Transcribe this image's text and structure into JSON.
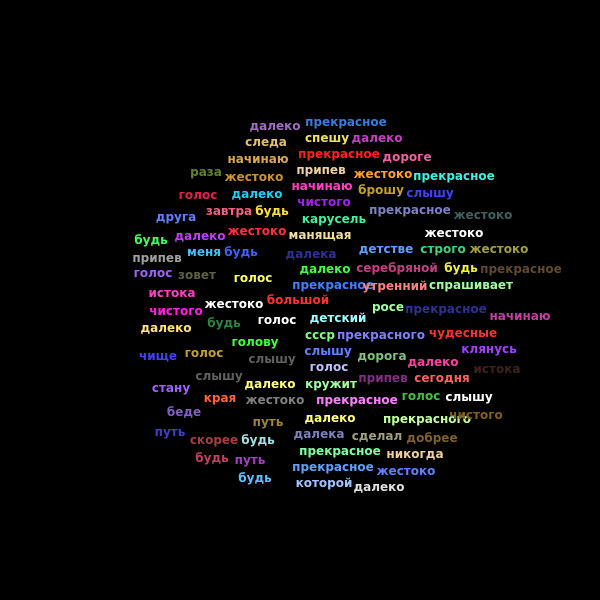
{
  "words": [
    {
      "text": "далеко",
      "color": "#a06cc0"
    },
    {
      "text": "прекрасное",
      "color": "#3a7ad8"
    },
    {
      "text": "следа",
      "color": "#e0c070"
    },
    {
      "text": "спешу",
      "color": "#f0e060"
    },
    {
      "text": "далеко",
      "color": "#c040c0"
    },
    {
      "text": "начинаю",
      "color": "#d8a850"
    },
    {
      "text": "прекрасное",
      "color": "#ff2020"
    },
    {
      "text": "дороге",
      "color": "#f060a0"
    },
    {
      "text": "раза",
      "color": "#608030"
    },
    {
      "text": "жестоко",
      "color": "#d09030"
    },
    {
      "text": "припев",
      "color": "#f0d0a0"
    },
    {
      "text": "жестоко",
      "color": "#ffa030"
    },
    {
      "text": "прекрасное",
      "color": "#40f0e0"
    },
    {
      "text": "начинаю",
      "color": "#ff40c0"
    },
    {
      "text": "брошу",
      "color": "#c0a030"
    },
    {
      "text": "слышу",
      "color": "#4040ff"
    },
    {
      "text": "голос",
      "color": "#e02050"
    },
    {
      "text": "далеко",
      "color": "#20d0f0"
    },
    {
      "text": "чистого",
      "color": "#a020f0"
    },
    {
      "text": "завтра",
      "color": "#f06080"
    },
    {
      "text": "будь",
      "color": "#ffe040"
    },
    {
      "text": "прекрасное",
      "color": "#8080c0"
    },
    {
      "text": "друга",
      "color": "#6080ff"
    },
    {
      "text": "карусель",
      "color": "#40f0a0"
    },
    {
      "text": "жестоко",
      "color": "#406060"
    },
    {
      "text": "жестоко",
      "color": "#ff3040"
    },
    {
      "text": "жестоко",
      "color": "#ffffff"
    },
    {
      "text": "будь",
      "color": "#40ff60"
    },
    {
      "text": "далеко",
      "color": "#c040f0"
    },
    {
      "text": "манящая",
      "color": "#f0e0a0"
    },
    {
      "text": "детстве",
      "color": "#60a0ff"
    },
    {
      "text": "строго",
      "color": "#40d080"
    },
    {
      "text": "жестоко",
      "color": "#a0a040"
    },
    {
      "text": "меня",
      "color": "#40c0ff"
    },
    {
      "text": "будь",
      "color": "#4060ff"
    },
    {
      "text": "далека",
      "color": "#303090"
    },
    {
      "text": "припев",
      "color": "#a0a0a0"
    },
    {
      "text": "далеко",
      "color": "#40ff40"
    },
    {
      "text": "серебряной",
      "color": "#c04080"
    },
    {
      "text": "будь",
      "color": "#f0f040"
    },
    {
      "text": "прекрасное",
      "color": "#604830"
    },
    {
      "text": "голос",
      "color": "#a060ff"
    },
    {
      "text": "зовет",
      "color": "#606040"
    },
    {
      "text": "голос",
      "color": "#ffff60"
    },
    {
      "text": "прекрасное",
      "color": "#4080ff"
    },
    {
      "text": "утренний",
      "color": "#ff8080"
    },
    {
      "text": "спрашивает",
      "color": "#a0ffa0"
    },
    {
      "text": "истока",
      "color": "#ff40c0"
    },
    {
      "text": "большой",
      "color": "#ff3030"
    },
    {
      "text": "жестоко",
      "color": "#ffffff"
    },
    {
      "text": "росе",
      "color": "#a0ffa0"
    },
    {
      "text": "прекрасное",
      "color": "#303090"
    },
    {
      "text": "чистого",
      "color": "#ff20e0"
    },
    {
      "text": "начинаю",
      "color": "#c040a0"
    },
    {
      "text": "детский",
      "color": "#a0ffff"
    },
    {
      "text": "будь",
      "color": "#308040"
    },
    {
      "text": "голос",
      "color": "#ffffff"
    },
    {
      "text": "далеко",
      "color": "#ffe080"
    },
    {
      "text": "ссср",
      "color": "#80ff80"
    },
    {
      "text": "прекрасного",
      "color": "#8080ff"
    },
    {
      "text": "чудесные",
      "color": "#ff3030"
    },
    {
      "text": "голову",
      "color": "#40ff40"
    },
    {
      "text": "клянусь",
      "color": "#a040ff"
    },
    {
      "text": "чище",
      "color": "#4040ff"
    },
    {
      "text": "голос",
      "color": "#c0a030"
    },
    {
      "text": "слышу",
      "color": "#606060"
    },
    {
      "text": "слышу",
      "color": "#6080ff"
    },
    {
      "text": "дорога",
      "color": "#80c080"
    },
    {
      "text": "далеко",
      "color": "#ff40a0"
    },
    {
      "text": "голос",
      "color": "#c0c0ff"
    },
    {
      "text": "истока",
      "color": "#402020"
    },
    {
      "text": "слышу",
      "color": "#606060"
    },
    {
      "text": "припев",
      "color": "#803080"
    },
    {
      "text": "сегодня",
      "color": "#ff6060"
    },
    {
      "text": "стану",
      "color": "#a060ff"
    },
    {
      "text": "далеко",
      "color": "#ffff80"
    },
    {
      "text": "кружит",
      "color": "#a0ffa0"
    },
    {
      "text": "края",
      "color": "#ff6040"
    },
    {
      "text": "жестоко",
      "color": "#808080"
    },
    {
      "text": "прекрасное",
      "color": "#ff80ff"
    },
    {
      "text": "голос",
      "color": "#40c040"
    },
    {
      "text": "слышу",
      "color": "#ffffff"
    },
    {
      "text": "беде",
      "color": "#8060c0"
    },
    {
      "text": "путь",
      "color": "#a08040"
    },
    {
      "text": "далеко",
      "color": "#ffff80"
    },
    {
      "text": "прекрасного",
      "color": "#c0ffa0"
    },
    {
      "text": "чистого",
      "color": "#806020"
    },
    {
      "text": "путь",
      "color": "#4040c0"
    },
    {
      "text": "скорее",
      "color": "#a04040"
    },
    {
      "text": "будь",
      "color": "#a0e0e0"
    },
    {
      "text": "далека",
      "color": "#8080c0"
    },
    {
      "text": "сделал",
      "color": "#a0a080"
    },
    {
      "text": "добрее",
      "color": "#806030"
    },
    {
      "text": "прекрасное",
      "color": "#80ffa0"
    },
    {
      "text": "никогда",
      "color": "#f0d0a0"
    },
    {
      "text": "будь",
      "color": "#c04060"
    },
    {
      "text": "путь",
      "color": "#a040c0"
    },
    {
      "text": "прекрасное",
      "color": "#60a0ff"
    },
    {
      "text": "жестоко",
      "color": "#6080ff"
    },
    {
      "text": "будь",
      "color": "#60c0ff"
    },
    {
      "text": "которой",
      "color": "#a0c0ff"
    },
    {
      "text": "далеко",
      "color": "#e0e0e0"
    }
  ]
}
